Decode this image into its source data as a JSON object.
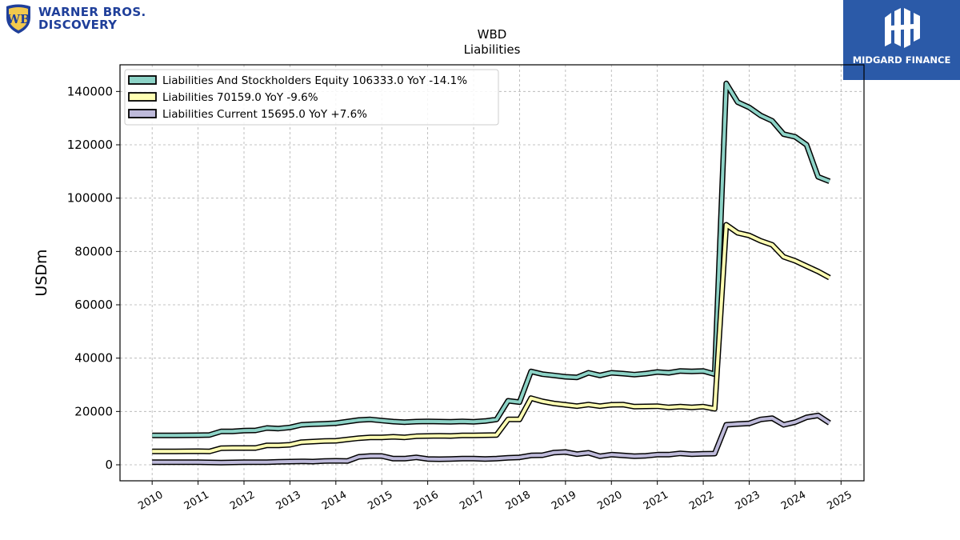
{
  "brand_left": {
    "line1": "WARNER BROS.",
    "line2": "DISCOVERY",
    "icon": "wb-shield-icon",
    "color": "#1f3f9a"
  },
  "brand_right": {
    "name": "MIDGARD FINANCE",
    "icon": "midgard-mark-icon",
    "color": "#2b5aa8"
  },
  "chart_data": {
    "type": "line",
    "title": "WBD",
    "subtitle": "Liabilities",
    "xlabel": "",
    "ylabel": "USDm",
    "xlim": [
      2009.3,
      2025.5
    ],
    "ylim": [
      -6000,
      150000
    ],
    "yticks": [
      0,
      20000,
      40000,
      60000,
      80000,
      100000,
      120000,
      140000
    ],
    "xticks": [
      "2010",
      "2011",
      "2012",
      "2013",
      "2014",
      "2015",
      "2016",
      "2017",
      "2018",
      "2019",
      "2020",
      "2021",
      "2022",
      "2023",
      "2024",
      "2025"
    ],
    "grid": true,
    "legend_position": "top-left",
    "series": [
      {
        "name": "Liabilities And Stockholders Equity  106333.0 YoY -14.1%",
        "color": "#8dd3c7",
        "x": [
          2010.0,
          2010.5,
          2011.0,
          2011.25,
          2011.5,
          2011.75,
          2012.0,
          2012.25,
          2012.5,
          2012.75,
          2013.0,
          2013.25,
          2013.5,
          2013.75,
          2014.0,
          2014.25,
          2014.5,
          2014.75,
          2015.0,
          2015.25,
          2015.5,
          2015.75,
          2016.0,
          2016.25,
          2016.5,
          2016.75,
          2017.0,
          2017.25,
          2017.5,
          2017.75,
          2018.0,
          2018.25,
          2018.5,
          2018.75,
          2019.0,
          2019.25,
          2019.5,
          2019.75,
          2020.0,
          2020.25,
          2020.5,
          2020.75,
          2021.0,
          2021.25,
          2021.5,
          2021.75,
          2022.0,
          2022.25,
          2022.5,
          2022.75,
          2023.0,
          2023.25,
          2023.5,
          2023.75,
          2024.0,
          2024.25,
          2024.5,
          2024.75
        ],
        "y": [
          11000,
          11000,
          11100,
          11200,
          12500,
          12500,
          12800,
          12900,
          13800,
          13600,
          14000,
          15000,
          15200,
          15400,
          15600,
          16200,
          16800,
          17000,
          16600,
          16200,
          16000,
          16200,
          16300,
          16200,
          16100,
          16300,
          16100,
          16400,
          17000,
          24000,
          23500,
          35000,
          34000,
          33500,
          33000,
          32800,
          34500,
          33500,
          34500,
          34200,
          33800,
          34200,
          34800,
          34500,
          35200,
          35000,
          35200,
          34000,
          143000,
          136000,
          134000,
          131000,
          129000,
          124000,
          123000,
          120000,
          108000,
          106333
        ]
      },
      {
        "name": "Liabilities  70159.0 YoY -9.6%",
        "color": "#ffffb3",
        "x": [
          2010.0,
          2010.5,
          2011.0,
          2011.25,
          2011.5,
          2011.75,
          2012.0,
          2012.25,
          2012.5,
          2012.75,
          2013.0,
          2013.25,
          2013.5,
          2013.75,
          2014.0,
          2014.25,
          2014.5,
          2014.75,
          2015.0,
          2015.25,
          2015.5,
          2015.75,
          2016.0,
          2016.25,
          2016.5,
          2016.75,
          2017.0,
          2017.25,
          2017.5,
          2017.75,
          2018.0,
          2018.25,
          2018.5,
          2018.75,
          2019.0,
          2019.25,
          2019.5,
          2019.75,
          2020.0,
          2020.25,
          2020.5,
          2020.75,
          2021.0,
          2021.25,
          2021.5,
          2021.75,
          2022.0,
          2022.25,
          2022.5,
          2022.75,
          2023.0,
          2023.25,
          2023.5,
          2023.75,
          2024.0,
          2024.25,
          2024.5,
          2024.75
        ],
        "y": [
          5000,
          5000,
          5100,
          5000,
          6200,
          6300,
          6300,
          6300,
          7300,
          7300,
          7500,
          8500,
          8700,
          8900,
          9000,
          9500,
          10000,
          10300,
          10300,
          10500,
          10300,
          10700,
          10800,
          10900,
          10800,
          11000,
          11000,
          11100,
          11200,
          17000,
          17000,
          25000,
          23800,
          23000,
          22500,
          22000,
          22600,
          22000,
          22500,
          22600,
          21800,
          21900,
          22000,
          21500,
          21800,
          21500,
          21800,
          21000,
          90000,
          87000,
          86000,
          84000,
          82500,
          78000,
          76500,
          74500,
          72500,
          70159
        ]
      },
      {
        "name": "Liabilities Current  15695.0 YoY +7.6%",
        "color": "#bebada",
        "x": [
          2010.0,
          2010.5,
          2011.0,
          2011.25,
          2011.5,
          2011.75,
          2012.0,
          2012.25,
          2012.5,
          2012.75,
          2013.0,
          2013.25,
          2013.5,
          2013.75,
          2014.0,
          2014.25,
          2014.5,
          2014.75,
          2015.0,
          2015.25,
          2015.5,
          2015.75,
          2016.0,
          2016.25,
          2016.5,
          2016.75,
          2017.0,
          2017.25,
          2017.5,
          2017.75,
          2018.0,
          2018.25,
          2018.5,
          2018.75,
          2019.0,
          2019.25,
          2019.5,
          2019.75,
          2020.0,
          2020.25,
          2020.5,
          2020.75,
          2021.0,
          2021.25,
          2021.5,
          2021.75,
          2022.0,
          2022.25,
          2022.5,
          2022.75,
          2023.0,
          2023.25,
          2023.5,
          2023.75,
          2024.0,
          2024.25,
          2024.5,
          2024.75
        ],
        "y": [
          1000,
          1000,
          1000,
          900,
          800,
          900,
          1000,
          1000,
          1000,
          1100,
          1200,
          1300,
          1200,
          1400,
          1500,
          1400,
          3000,
          3300,
          3300,
          2300,
          2300,
          2800,
          2200,
          2100,
          2200,
          2300,
          2300,
          2200,
          2300,
          2600,
          2800,
          3500,
          3600,
          4600,
          4800,
          4000,
          4500,
          3200,
          3800,
          3500,
          3200,
          3400,
          3800,
          3800,
          4300,
          4000,
          4100,
          4200,
          15000,
          15300,
          15500,
          17000,
          17500,
          15000,
          16000,
          17800,
          18500,
          15695
        ]
      }
    ]
  }
}
